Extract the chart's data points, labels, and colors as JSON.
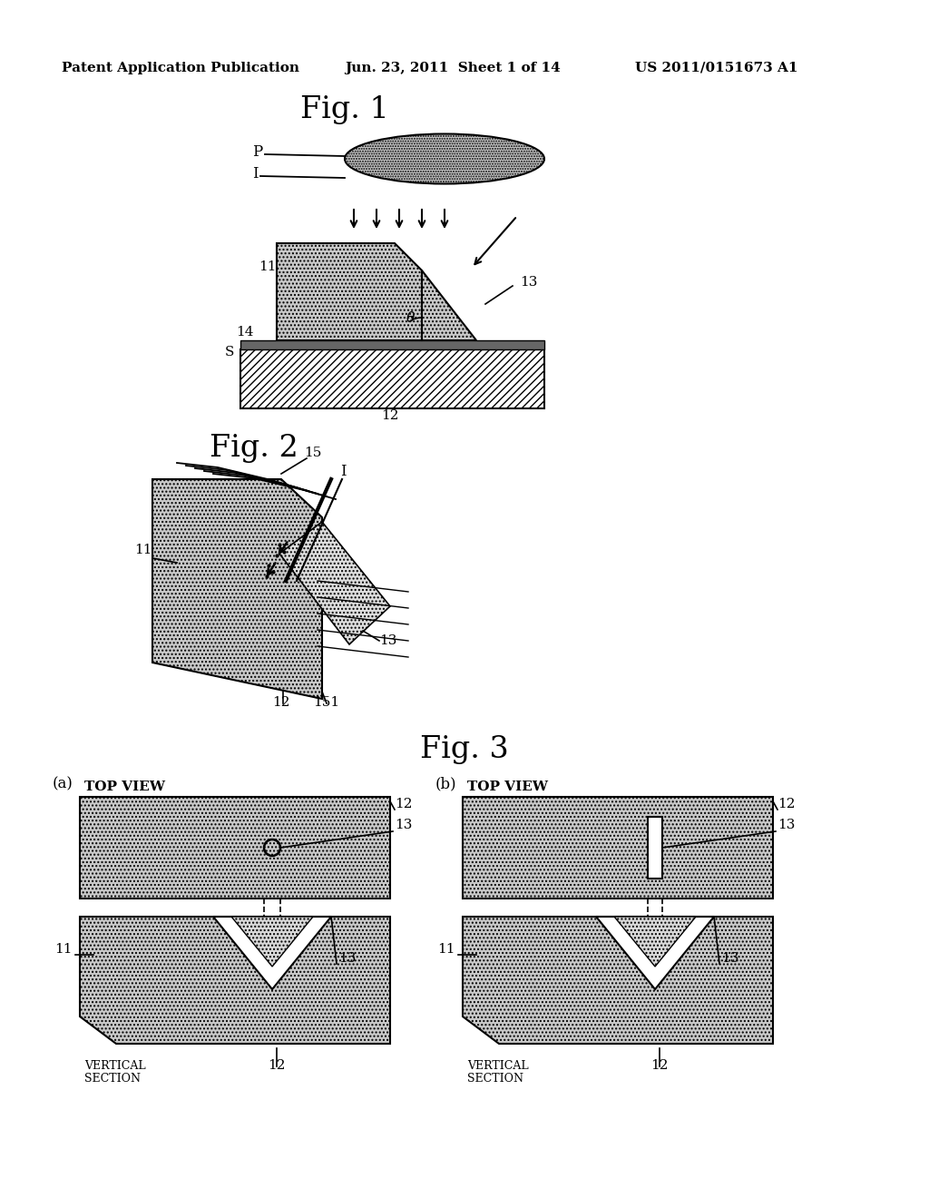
{
  "bg_color": "#ffffff",
  "header_text1": "Patent Application Publication",
  "header_text2": "Jun. 23, 2011  Sheet 1 of 14",
  "header_text3": "US 2011/0151673 A1",
  "fig1_title": "Fig. 1",
  "fig2_title": "Fig. 2",
  "fig3_title": "Fig. 3",
  "stipple_color": "#c8c8c8",
  "hatch_color": "#888888"
}
